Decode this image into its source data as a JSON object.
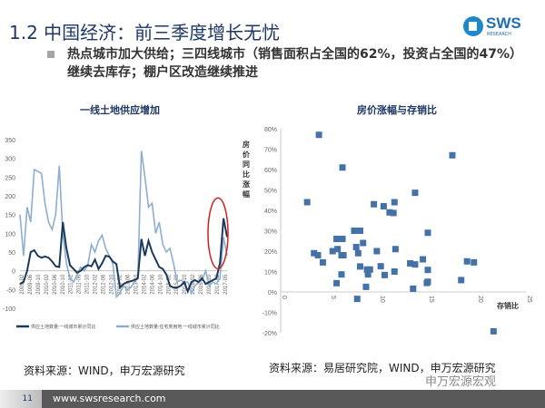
{
  "header": {
    "title": "1.2 中国经济：前三季度增长无忧",
    "logo_text": "SWS",
    "logo_sub": "RESEARCH"
  },
  "bullet": "热点城市加大供给；三四线城市（销售面积占全国的62%，投资占全国的47%）继续去库存；棚户区改造继续推进",
  "sources": {
    "left": "资料来源：WIND，申万宏源研究",
    "right": "资料来源：易居研究院，WIND，申万宏源研究"
  },
  "footer": {
    "page": "11",
    "url": "www.swsresearch.com",
    "wechat": "申万宏源宏观"
  },
  "colors": {
    "dark": "#1b3a5c",
    "light": "#8eaed0",
    "scatter": "#4472a8",
    "highlight": "#d02020"
  },
  "chart_data": [
    {
      "type": "line",
      "title": "一线土地供应增加",
      "ylim": [
        -100,
        350
      ],
      "yticks": [
        350,
        300,
        250,
        200,
        150,
        100,
        50,
        0,
        -50,
        -100
      ],
      "xticks": [
        "2009-02",
        "2009-06",
        "2009-10",
        "2010-02",
        "2010-06",
        "2010-10",
        "2011-02",
        "2011-06",
        "2011-10",
        "2012-02",
        "2012-06",
        "2012-10",
        "2013-02",
        "2013-06",
        "2013-10",
        "2014-02",
        "2014-06",
        "2014-10",
        "2015-02",
        "2015-06",
        "2015-10",
        "2016-02",
        "2016-06",
        "2016-10",
        "2017-02",
        "2017-05"
      ],
      "series": [
        {
          "name": "供应土地数量:一线城市累计同比",
          "values": [
            -35,
            -30,
            0,
            50,
            55,
            40,
            35,
            38,
            35,
            25,
            12,
            10,
            130,
            60,
            15,
            5,
            -5,
            0,
            10,
            15,
            12,
            30,
            5,
            20,
            40,
            38,
            25,
            18,
            -45,
            -35,
            -30,
            -28,
            -25,
            -20,
            85,
            40,
            80,
            50,
            30,
            10,
            5,
            -10,
            -40,
            -45,
            -45,
            -40,
            -30,
            -55,
            -30,
            -25,
            -30,
            -20,
            -35,
            -30,
            -25,
            -20,
            20,
            140,
            90
          ]
        },
        {
          "name": "供应土地数量:住宅类用地:一线城市累计同比",
          "values": [
            150,
            40,
            170,
            130,
            270,
            265,
            260,
            180,
            130,
            110,
            150,
            280,
            100,
            20,
            -20,
            -30,
            -10,
            10,
            0,
            15,
            70,
            50,
            80,
            95,
            60,
            40,
            20,
            -70,
            -60,
            -40,
            -50,
            -45,
            -30,
            -20,
            320,
            250,
            170,
            180,
            100,
            130,
            70,
            50,
            60,
            20,
            -30,
            -25,
            -30,
            -30,
            -60,
            -40,
            -30,
            -25,
            0,
            -40,
            -30,
            -35,
            -20,
            90,
            40
          ]
        }
      ]
    },
    {
      "type": "scatter",
      "title": "房价涨幅与存销比",
      "xlabel": "存销比",
      "ylabel": "房价同比涨幅",
      "xlim": [
        0,
        25
      ],
      "ylim": [
        -20,
        80
      ],
      "xticks": [
        "0",
        "5",
        "10",
        "15",
        "20",
        "25"
      ],
      "yticks": [
        "80%",
        "70%",
        "60%",
        "50%",
        "40%",
        "30%",
        "20%",
        "10%",
        "0%",
        "-10%",
        "-20%"
      ],
      "points": [
        [
          3.9,
          77
        ],
        [
          6.3,
          61
        ],
        [
          17.5,
          67
        ],
        [
          2.7,
          44
        ],
        [
          13.7,
          48.6
        ],
        [
          9.5,
          43
        ],
        [
          10.5,
          42
        ],
        [
          11.1,
          39
        ],
        [
          11.5,
          38.7
        ],
        [
          11.6,
          44
        ],
        [
          7.5,
          30
        ],
        [
          8.1,
          30
        ],
        [
          15,
          29
        ],
        [
          5.7,
          26
        ],
        [
          6.3,
          26
        ],
        [
          8.4,
          24
        ],
        [
          5.8,
          21
        ],
        [
          7.7,
          22
        ],
        [
          11.7,
          21
        ],
        [
          5.3,
          20
        ],
        [
          7.9,
          19
        ],
        [
          9.8,
          20
        ],
        [
          3.4,
          19
        ],
        [
          3.8,
          18
        ],
        [
          6.2,
          18
        ],
        [
          6.4,
          18
        ],
        [
          4.3,
          14.5
        ],
        [
          14.5,
          16
        ],
        [
          13.2,
          14
        ],
        [
          13.7,
          13.5
        ],
        [
          19,
          15
        ],
        [
          19.7,
          14.5
        ],
        [
          8.1,
          12.5
        ],
        [
          10.2,
          12.6
        ],
        [
          8.8,
          11
        ],
        [
          9.1,
          11
        ],
        [
          8.9,
          8.6
        ],
        [
          6.2,
          8.6
        ],
        [
          10.6,
          8.3
        ],
        [
          11.6,
          10
        ],
        [
          15,
          10.8
        ],
        [
          5.7,
          4.3
        ],
        [
          8.7,
          2.5
        ],
        [
          14.9,
          4.4
        ],
        [
          15,
          5
        ],
        [
          18.4,
          5.8
        ],
        [
          13.5,
          1.6
        ],
        [
          7.8,
          -3.4
        ],
        [
          21.7,
          -19.3
        ]
      ]
    }
  ]
}
